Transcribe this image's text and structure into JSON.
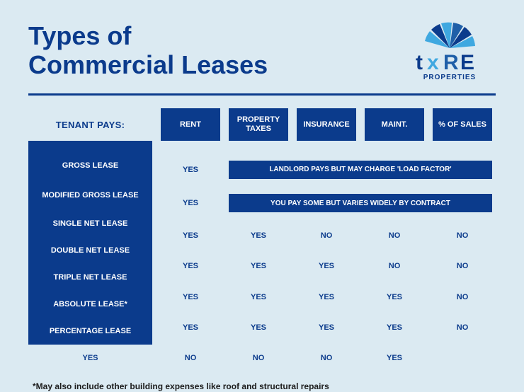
{
  "colors": {
    "page_bg": "#dbeaf2",
    "primary_blue": "#0b3b8c",
    "light_blue": "#3fa8e0",
    "mid_blue": "#1f5fa8",
    "dark_text": "#0b3b8c",
    "body_text": "#1c1c1c"
  },
  "title": "Types of\nCommercial Leases",
  "logo": {
    "brand_top": "TXRE",
    "brand_bottom": "PROPERTIES"
  },
  "table": {
    "tenant_pays_label": "TENANT PAYS:",
    "columns": [
      "RENT",
      "PROPERTY TAXES",
      "INSURANCE",
      "MAINT.",
      "% OF SALES"
    ],
    "merged_rows": [
      {
        "label": "GROSS LEASE",
        "rent": "YES",
        "note": "LANDLORD PAYS BUT MAY CHARGE 'LOAD FACTOR'"
      },
      {
        "label": "MODIFIED GROSS LEASE",
        "rent": "YES",
        "note": "YOU PAY SOME BUT VARIES WIDELY BY CONTRACT"
      }
    ],
    "rows": [
      {
        "label": "SINGLE NET LEASE",
        "cells": [
          "YES",
          "YES",
          "NO",
          "NO",
          "NO"
        ]
      },
      {
        "label": "DOUBLE NET LEASE",
        "cells": [
          "YES",
          "YES",
          "YES",
          "NO",
          "NO"
        ]
      },
      {
        "label": "TRIPLE NET LEASE",
        "cells": [
          "YES",
          "YES",
          "YES",
          "YES",
          "NO"
        ]
      },
      {
        "label": "ABSOLUTE LEASE*",
        "cells": [
          "YES",
          "YES",
          "YES",
          "YES",
          "NO"
        ]
      },
      {
        "label": "PERCENTAGE LEASE",
        "cells": [
          "YES",
          "NO",
          "NO",
          "NO",
          "YES"
        ]
      }
    ]
  },
  "footnote": "*May also include other building expenses like roof and structural repairs"
}
